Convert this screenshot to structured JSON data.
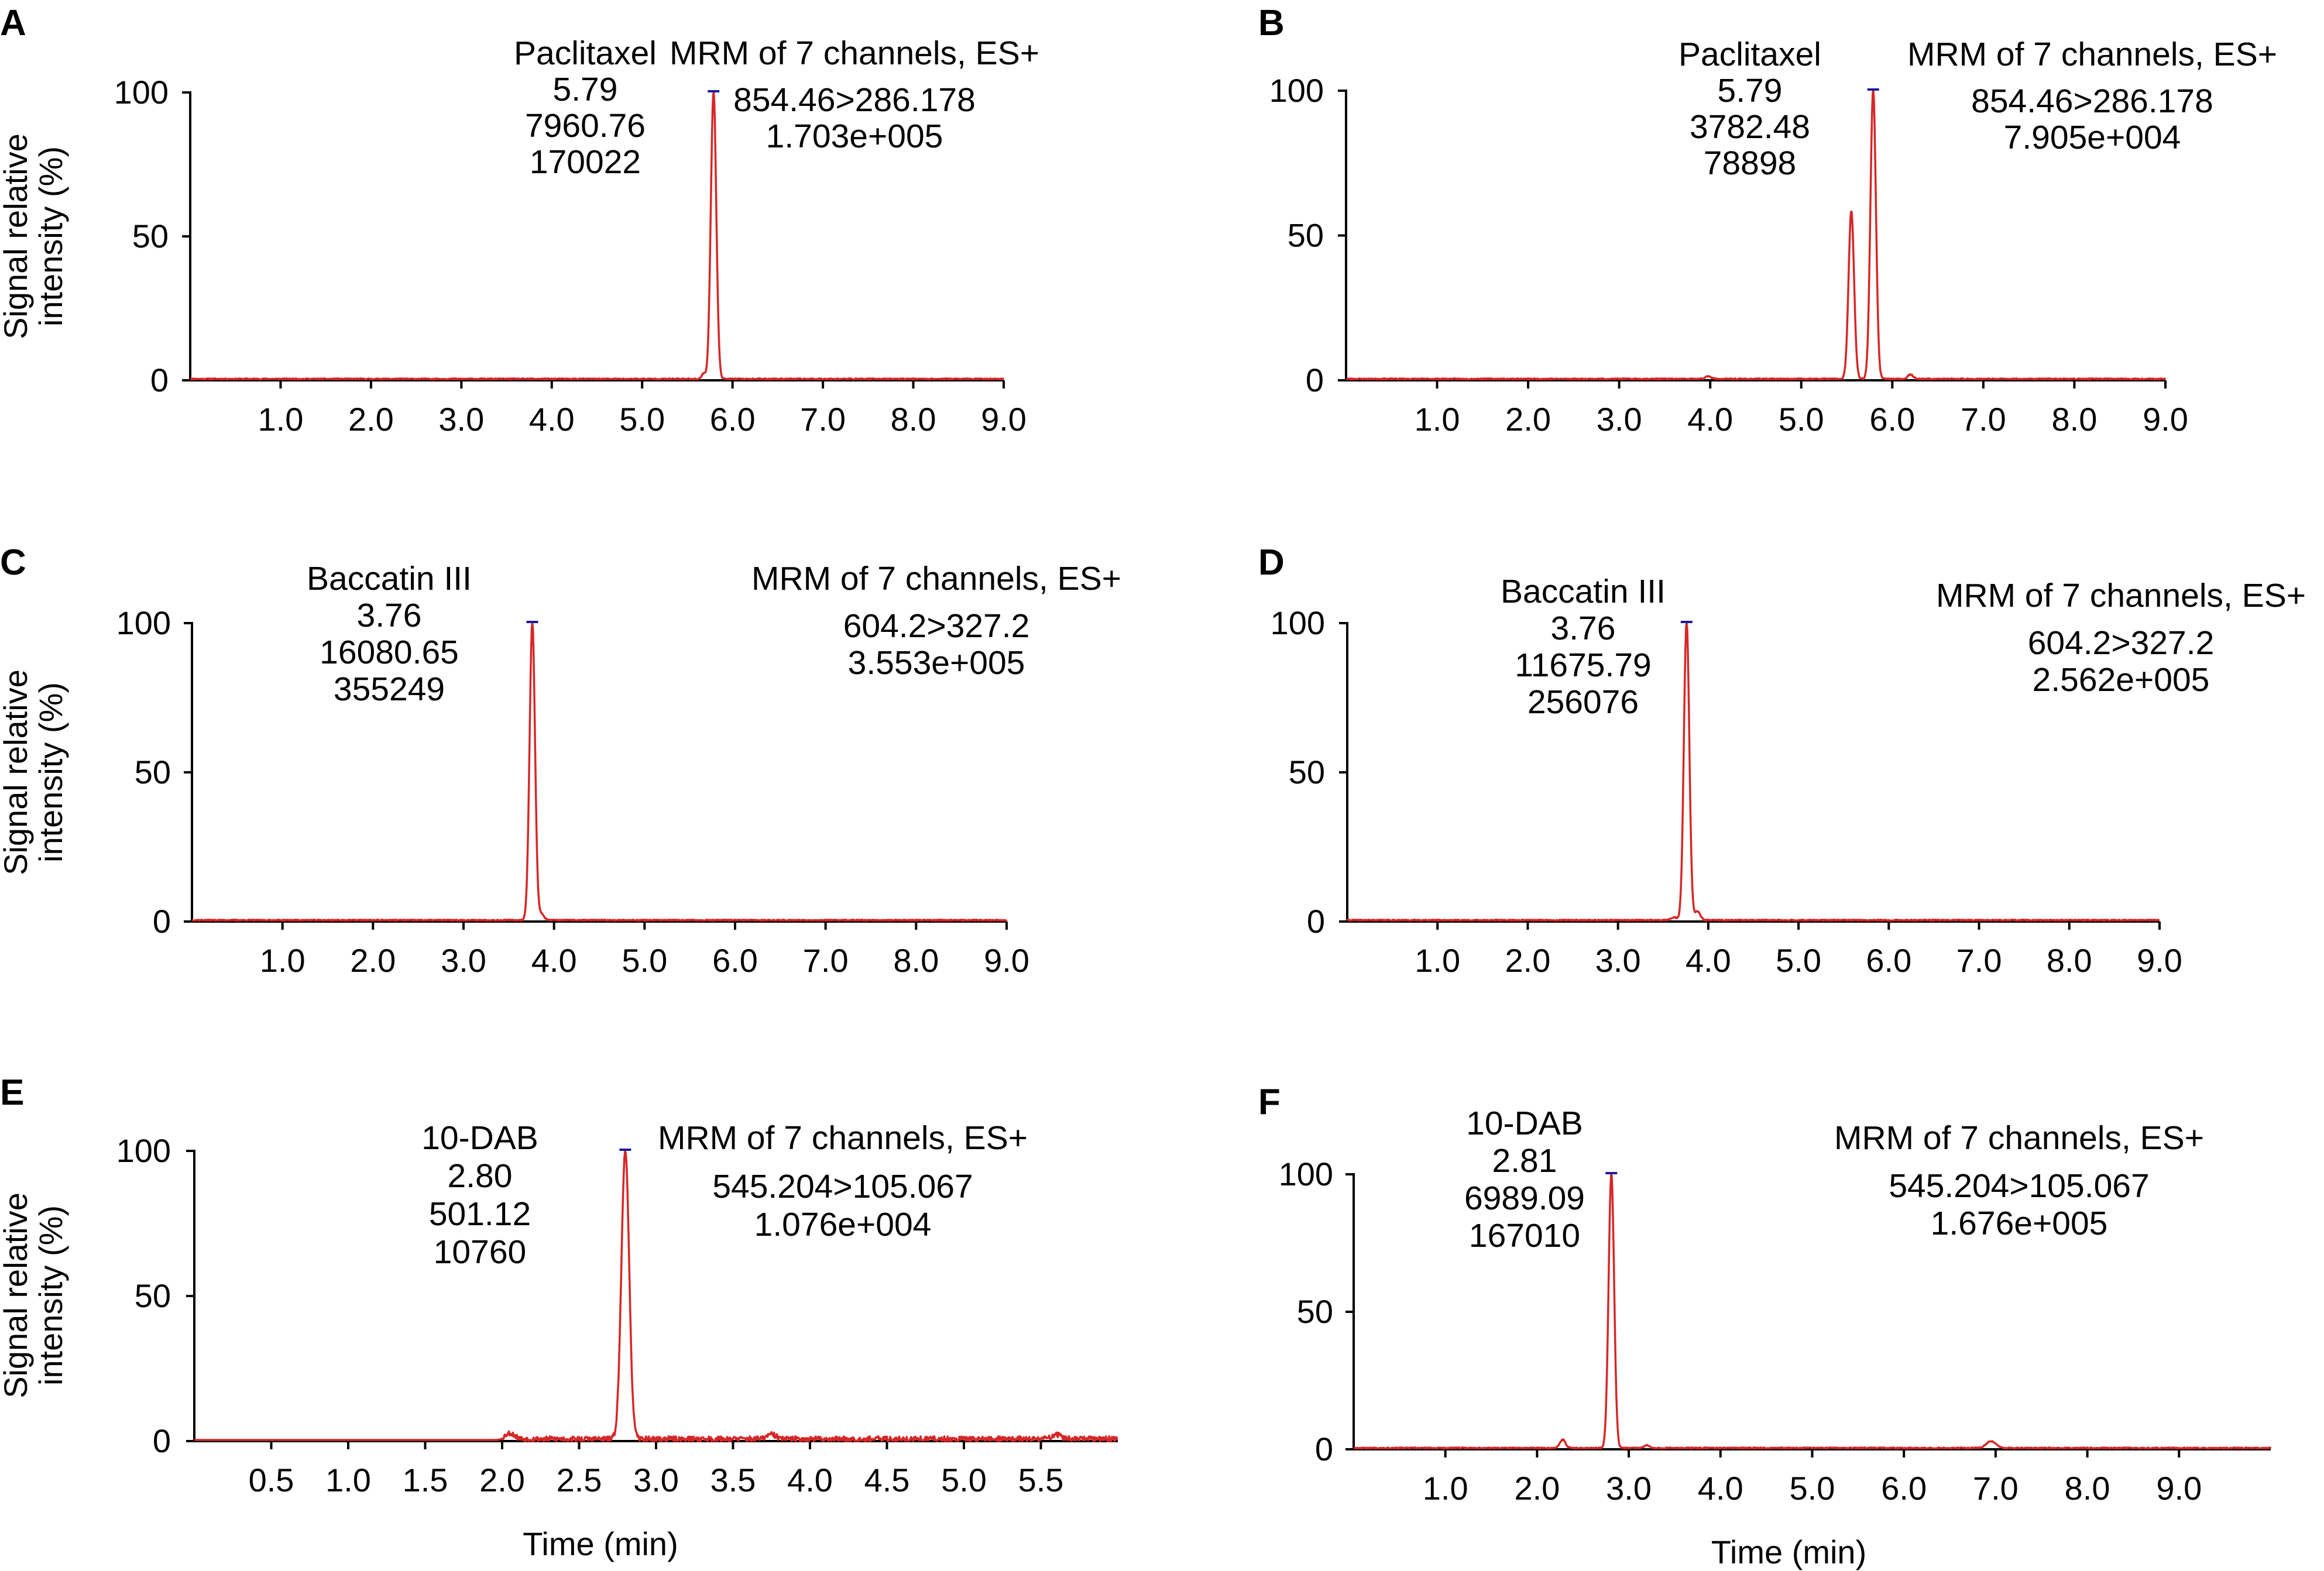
{
  "colors": {
    "trace": "#d62728",
    "axis": "#000000",
    "apex": "#1a1aa0"
  },
  "chart_data": [
    {
      "panel": "A",
      "type": "line",
      "ylabel": "Signal relative intensity (%)",
      "xlabel": "",
      "ylim": [
        0,
        100
      ],
      "yticks": [
        "0",
        "50",
        "100"
      ],
      "xlim": [
        0,
        9.0
      ],
      "xticks": [
        "1.0",
        "2.0",
        "3.0",
        "4.0",
        "5.0",
        "6.0",
        "7.0",
        "8.0",
        "9.0"
      ],
      "peak_label": [
        "Paclitaxel",
        "5.79",
        "7960.76",
        "170022"
      ],
      "channel_label": [
        "MRM of 7 channels, ES+",
        "854.46>286.178",
        "1.703e+005"
      ],
      "peaks": [
        {
          "x": 5.79,
          "y": 100,
          "width": 0.03
        }
      ],
      "minor_peaks": [
        {
          "x": 5.68,
          "y": 2,
          "width": 0.02
        }
      ],
      "noise": 0.4,
      "seed": 11
    },
    {
      "panel": "B",
      "type": "line",
      "ylabel": "",
      "xlabel": "",
      "ylim": [
        0,
        100
      ],
      "yticks": [
        "0",
        "50",
        "100"
      ],
      "xlim": [
        0,
        9.0
      ],
      "xticks": [
        "1.0",
        "2.0",
        "3.0",
        "4.0",
        "5.0",
        "6.0",
        "7.0",
        "8.0",
        "9.0"
      ],
      "peak_label": [
        "Paclitaxel",
        "5.79",
        "3782.48",
        "78898"
      ],
      "channel_label": [
        "MRM of 7 channels, ES+",
        "854.46>286.178",
        "7.905e+004"
      ],
      "peaks": [
        {
          "x": 5.79,
          "y": 100,
          "width": 0.03
        },
        {
          "x": 5.55,
          "y": 58,
          "width": 0.03
        }
      ],
      "minor_peaks": [
        {
          "x": 6.2,
          "y": 1.5,
          "width": 0.03
        },
        {
          "x": 3.98,
          "y": 1,
          "width": 0.03
        }
      ],
      "noise": 0.4,
      "seed": 23
    },
    {
      "panel": "C",
      "type": "line",
      "ylabel": "Signal relative intensity (%)",
      "xlabel": "",
      "ylim": [
        0,
        100
      ],
      "yticks": [
        "0",
        "50",
        "100"
      ],
      "xlim": [
        0,
        9.0
      ],
      "xticks": [
        "1.0",
        "2.0",
        "3.0",
        "4.0",
        "5.0",
        "6.0",
        "7.0",
        "8.0",
        "9.0"
      ],
      "peak_label": [
        "Baccatin III",
        "3.76",
        "16080.65",
        "355249"
      ],
      "channel_label": [
        "MRM of 7 channels, ES+",
        "604.2>327.2",
        "3.553e+005"
      ],
      "peaks": [
        {
          "x": 3.76,
          "y": 100,
          "width": 0.03
        }
      ],
      "minor_peaks": [
        {
          "x": 3.86,
          "y": 2,
          "width": 0.03
        }
      ],
      "noise": 0.35,
      "seed": 37
    },
    {
      "panel": "D",
      "type": "line",
      "ylabel": "",
      "xlabel": "",
      "ylim": [
        0,
        100
      ],
      "yticks": [
        "0",
        "50",
        "100"
      ],
      "xlim": [
        0,
        9.0
      ],
      "xticks": [
        "1.0",
        "2.0",
        "3.0",
        "4.0",
        "5.0",
        "6.0",
        "7.0",
        "8.0",
        "9.0"
      ],
      "peak_label": [
        "Baccatin III",
        "3.76",
        "11675.79",
        "256076"
      ],
      "channel_label": [
        "MRM of 7 channels, ES+",
        "604.2>327.2",
        "2.562e+005"
      ],
      "peaks": [
        {
          "x": 3.76,
          "y": 100,
          "width": 0.03
        }
      ],
      "minor_peaks": [
        {
          "x": 3.88,
          "y": 3,
          "width": 0.03
        },
        {
          "x": 3.62,
          "y": 1,
          "width": 0.03
        }
      ],
      "noise": 0.35,
      "seed": 41
    },
    {
      "panel": "E",
      "type": "line",
      "ylabel": "Signal relative intensity (%)",
      "xlabel": "Time (min)",
      "ylim": [
        0,
        100
      ],
      "yticks": [
        "0",
        "50",
        "100"
      ],
      "xlim": [
        0,
        6.0
      ],
      "xticks": [
        "0.5",
        "1.0",
        "1.5",
        "2.0",
        "2.5",
        "3.0",
        "3.5",
        "4.0",
        "4.5",
        "5.0",
        "5.5"
      ],
      "peak_label": [
        "10-DAB",
        "2.80",
        "501.12",
        "10760"
      ],
      "channel_label": [
        "MRM of 7 channels, ES+",
        "545.204>105.067",
        "1.076e+004"
      ],
      "peaks": [
        {
          "x": 2.8,
          "y": 100,
          "width": 0.025
        }
      ],
      "minor_peaks": [
        {
          "x": 2.05,
          "y": 2,
          "width": 0.03
        },
        {
          "x": 3.75,
          "y": 1.5,
          "width": 0.03
        },
        {
          "x": 5.6,
          "y": 1.5,
          "width": 0.03
        }
      ],
      "noise": 1.8,
      "noise_start": 2.0,
      "seed": 53
    },
    {
      "panel": "F",
      "type": "line",
      "ylabel": "",
      "xlabel": "Time (min)",
      "ylim": [
        0,
        100
      ],
      "yticks": [
        "0",
        "50",
        "100"
      ],
      "xlim": [
        0,
        10.0
      ],
      "xticks": [
        "1.0",
        "2.0",
        "3.0",
        "4.0",
        "5.0",
        "6.0",
        "7.0",
        "8.0",
        "9.0"
      ],
      "peak_label": [
        "10-DAB",
        "2.81",
        "6989.09",
        "167010"
      ],
      "channel_label": [
        "MRM of 7 channels, ES+",
        "545.204>105.067",
        "1.676e+005"
      ],
      "peaks": [
        {
          "x": 2.81,
          "y": 100,
          "width": 0.03
        }
      ],
      "minor_peaks": [
        {
          "x": 2.28,
          "y": 3,
          "width": 0.03
        },
        {
          "x": 6.95,
          "y": 2.5,
          "width": 0.05
        },
        {
          "x": 3.2,
          "y": 1,
          "width": 0.03
        }
      ],
      "noise": 0.4,
      "seed": 67
    }
  ]
}
